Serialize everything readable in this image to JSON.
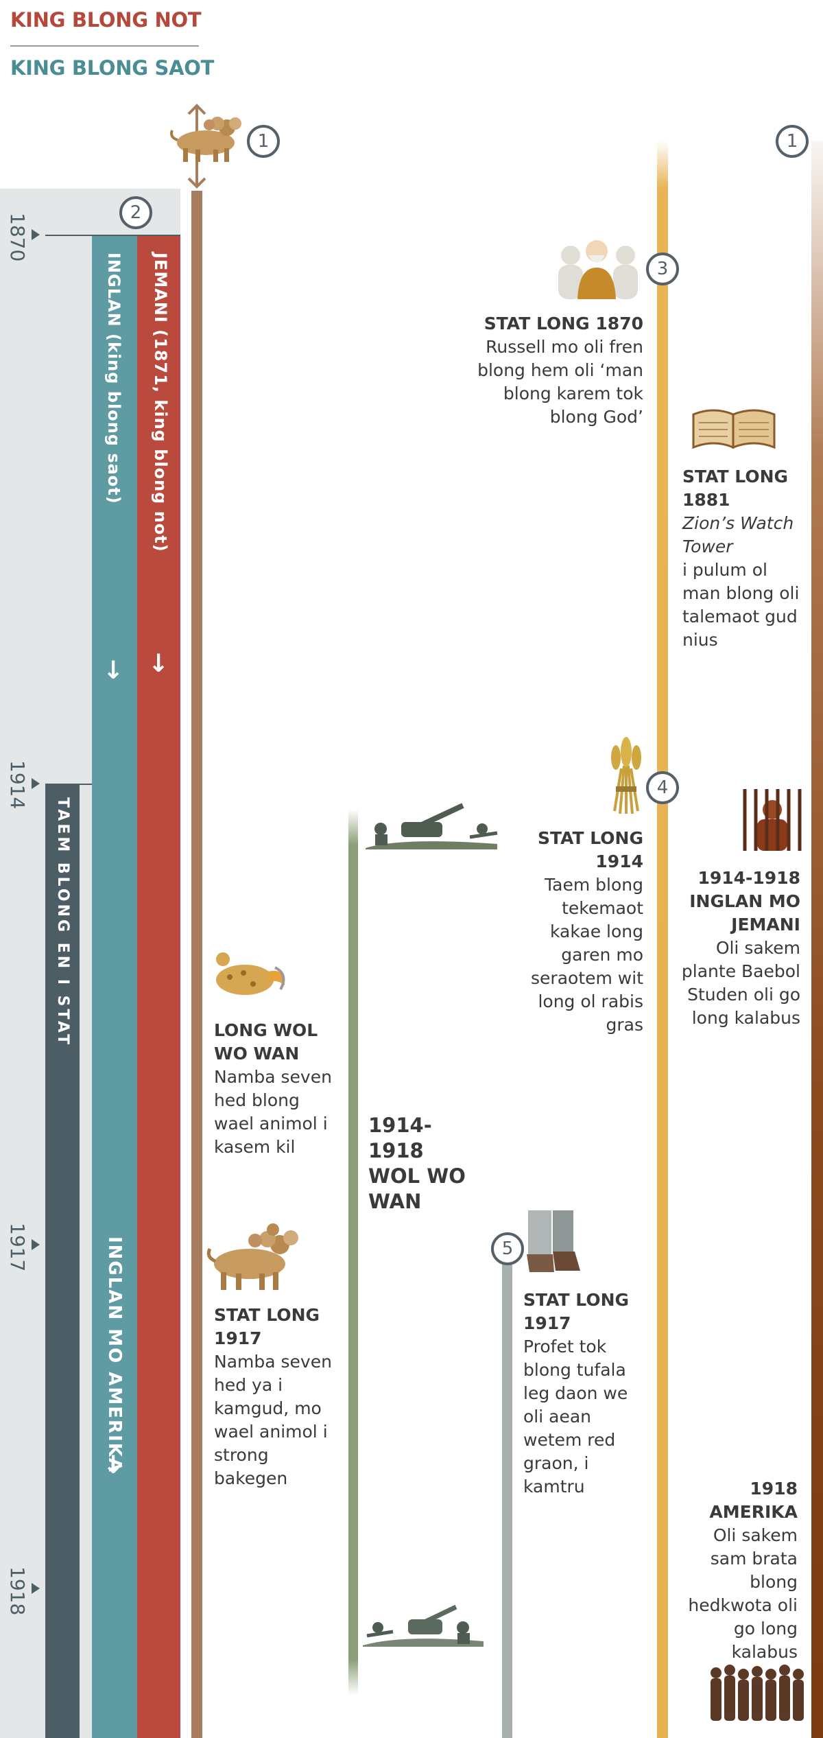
{
  "legend": {
    "north": "KING BLONG NOT",
    "south": "KING BLONG SAOT"
  },
  "years": [
    "1870",
    "1914",
    "1917",
    "1918"
  ],
  "bars": {
    "germany": "JEMANI (1871, king blong not)",
    "britain": "INGLAN (king blong saot)",
    "end_time": "TAEM BLONG EN I STAT",
    "anglo_american": "INGLAN MO AMERIKA"
  },
  "markers": {
    "one_left": "1",
    "one_right": "1",
    "two": "2",
    "three": "3",
    "four": "4",
    "five": "5"
  },
  "entries": {
    "e1870": {
      "heading": "STAT LONG 1870",
      "text": "Russell mo oli fren blong hem oli ‘man blong karem tok blong God’"
    },
    "e1881": {
      "heading": "STAT LONG 1881",
      "title": "Zion’s Watch Tower",
      "text": "i pulum ol man blong oli talemaot gud nius"
    },
    "e1914": {
      "heading": "STAT LONG 1914",
      "text": "Taem blong tekemaot kakae long garen mo seraotem wit long ol rabis gras"
    },
    "e1914_1918_jail": {
      "heading": "1914-1918 INGLAN MO JEMANI",
      "text": "Oli sakem plante Baebol Studen oli go long kalabus"
    },
    "ww1_beast": {
      "heading": "LONG WOL WO WAN",
      "text": "Namba seven hed blong wael animol i kasem kil"
    },
    "ww1_label": "1914-1918 WOL WO WAN",
    "e1917_beast": {
      "heading": "STAT LONG 1917",
      "text": "Namba seven hed ya i kamgud, mo wael animol i strong bakegen"
    },
    "e1917_feet": {
      "heading": "STAT LONG 1917",
      "text": "Profet tok blong tufala leg daon we oli aean wetem red graon, i kamtru"
    },
    "e1918": {
      "heading": "1918 AMERIKA",
      "text": "Oli sakem sam brata blong hedkwota oli go long kalabus"
    }
  },
  "colors": {
    "north": "#b94a3d",
    "south": "#5e9ba3",
    "slate": "#4d5d65",
    "brown": "#a67e5e",
    "green": "#8a9e78",
    "gold": "#e7b152",
    "rust": "#8b4a1e"
  },
  "icons": [
    "up-down-arrow-icon",
    "beast-icon",
    "russell-group-icon",
    "bible-icon",
    "wheat-sheaf-icon",
    "soldiers-icon",
    "prisoner-icon",
    "wounded-beast-icon",
    "feet-icon",
    "prisoners-group-icon",
    "down-arrow-icon"
  ]
}
